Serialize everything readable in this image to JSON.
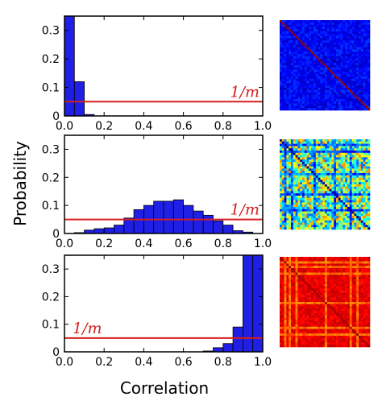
{
  "figure": {
    "xlabel": "Correlation",
    "ylabel": "Probability"
  },
  "chart_data": [
    {
      "type": "bar",
      "xlim": [
        0.0,
        1.0
      ],
      "ylim": [
        0.0,
        0.35
      ],
      "x_ticks": [
        "0.0",
        "0.2",
        "0.4",
        "0.6",
        "0.8",
        "1.0"
      ],
      "y_ticks": [
        "0",
        "0.1",
        "0.2",
        "0.3"
      ],
      "bin_width": 0.05,
      "bin_starts": [
        0.0,
        0.05,
        0.1
      ],
      "values": [
        0.35,
        0.12,
        0.005
      ],
      "reference_line": {
        "value": 0.05,
        "label": "1/m",
        "color": "#d61f1f"
      },
      "bar_color": "#1f1fe6",
      "matrix_style": "low"
    },
    {
      "type": "bar",
      "xlim": [
        0.0,
        1.0
      ],
      "ylim": [
        0.0,
        0.35
      ],
      "x_ticks": [
        "0.0",
        "0.2",
        "0.4",
        "0.6",
        "0.8",
        "1.0"
      ],
      "y_ticks": [
        "0",
        "0.1",
        "0.2",
        "0.3"
      ],
      "bin_width": 0.05,
      "bin_starts": [
        0.05,
        0.1,
        0.15,
        0.2,
        0.25,
        0.3,
        0.35,
        0.4,
        0.45,
        0.5,
        0.55,
        0.6,
        0.65,
        0.7,
        0.75,
        0.8,
        0.85,
        0.9
      ],
      "values": [
        0.003,
        0.012,
        0.017,
        0.02,
        0.03,
        0.055,
        0.085,
        0.1,
        0.115,
        0.115,
        0.12,
        0.1,
        0.08,
        0.065,
        0.045,
        0.03,
        0.01,
        0.005
      ],
      "reference_line": {
        "value": 0.05,
        "label": "1/m",
        "color": "#d61f1f"
      },
      "bar_color": "#1f1fe6",
      "matrix_style": "mid"
    },
    {
      "type": "bar",
      "xlim": [
        0.0,
        1.0
      ],
      "ylim": [
        0.0,
        0.35
      ],
      "x_ticks": [
        "0.0",
        "0.2",
        "0.4",
        "0.6",
        "0.8",
        "1.0"
      ],
      "y_ticks": [
        "0",
        "0.1",
        "0.2",
        "0.3"
      ],
      "bin_width": 0.05,
      "bin_starts": [
        0.7,
        0.75,
        0.8,
        0.85,
        0.9,
        0.95
      ],
      "values": [
        0.003,
        0.015,
        0.03,
        0.09,
        0.35,
        0.35
      ],
      "reference_line": {
        "value": 0.05,
        "label": "1/m",
        "color": "#d61f1f"
      },
      "bar_color": "#1f1fe6",
      "matrix_style": "high"
    }
  ]
}
